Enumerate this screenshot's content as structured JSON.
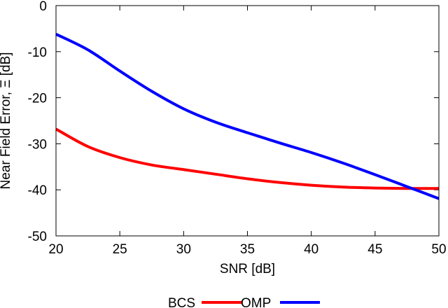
{
  "chart_data": {
    "type": "line",
    "title": "",
    "xlabel": "SNR [dB]",
    "ylabel": "Near Field Error, Ξ [dB]",
    "xlim": [
      20,
      50
    ],
    "ylim": [
      -50,
      0
    ],
    "xticks": [
      20,
      25,
      30,
      35,
      40,
      45,
      50
    ],
    "yticks": [
      0,
      -10,
      -20,
      -30,
      -40,
      -50
    ],
    "grid": false,
    "legend_position": "bottom",
    "series": [
      {
        "name": "BCS",
        "color": "#ff0000",
        "x": [
          20,
          22.5,
          25,
          27.5,
          30,
          32.5,
          35,
          37.5,
          40,
          42.5,
          45,
          47.5,
          50
        ],
        "y": [
          -26.8,
          -30.6,
          -33.0,
          -34.6,
          -35.6,
          -36.6,
          -37.6,
          -38.4,
          -39.0,
          -39.4,
          -39.6,
          -39.7,
          -39.7
        ]
      },
      {
        "name": "OMP",
        "color": "#0000ff",
        "x": [
          20,
          22.5,
          25,
          27.5,
          30,
          32.5,
          35,
          37.5,
          40,
          42.5,
          45,
          47.5,
          50
        ],
        "y": [
          -6.2,
          -9.6,
          -14.2,
          -18.6,
          -22.4,
          -25.3,
          -27.6,
          -29.8,
          -31.9,
          -34.2,
          -36.7,
          -39.3,
          -41.9
        ]
      }
    ]
  }
}
